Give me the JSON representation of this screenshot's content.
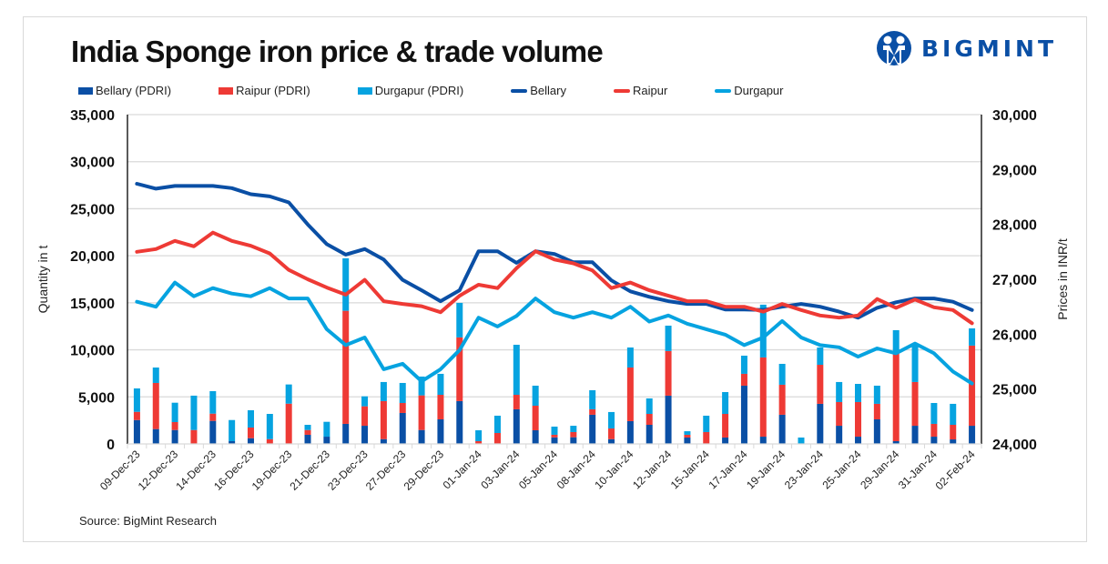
{
  "header": {
    "title": "India Sponge iron price & trade volume",
    "logo_text": "BIGMINT"
  },
  "colors": {
    "bellary": "#0a4fa5",
    "raipur": "#ee3a35",
    "durgapur": "#06a3e0"
  },
  "legend": [
    {
      "label": "Bellary (PDRI)",
      "kind": "bar",
      "color_key": "bellary"
    },
    {
      "label": "Raipur (PDRI)",
      "kind": "bar",
      "color_key": "raipur"
    },
    {
      "label": "Durgapur (PDRI)",
      "kind": "bar",
      "color_key": "durgapur"
    },
    {
      "label": "Bellary",
      "kind": "line",
      "color_key": "bellary"
    },
    {
      "label": "Raipur",
      "kind": "line",
      "color_key": "raipur"
    },
    {
      "label": "Durgapur",
      "kind": "line",
      "color_key": "durgapur"
    }
  ],
  "footer": {
    "source": "Source: BigMint Research"
  },
  "chart_data": {
    "type": "bar+line",
    "title": "India Sponge iron price & trade volume",
    "xlabel": "",
    "ylabel": "Quantity in t",
    "y2label": "Prices in INR/t",
    "ylim": [
      0,
      35000
    ],
    "yticks": [
      0,
      5000,
      10000,
      15000,
      20000,
      25000,
      30000,
      35000
    ],
    "ytick_labels": [
      "0",
      "5,000",
      "10,000",
      "15,000",
      "20,000",
      "25,000",
      "30,000",
      "35,000"
    ],
    "y2lim": [
      24000,
      30000
    ],
    "y2ticks": [
      24000,
      25000,
      26000,
      27000,
      28000,
      29000,
      30000
    ],
    "y2tick_labels": [
      "24,000",
      "25,000",
      "26,000",
      "27,000",
      "28,000",
      "29,000",
      "30,000"
    ],
    "grid": true,
    "legend_position": "top",
    "x_labels": [
      "09-Dec-23",
      null,
      "12-Dec-23",
      null,
      "14-Dec-23",
      null,
      "16-Dec-23",
      null,
      "19-Dec-23",
      null,
      "21-Dec-23",
      null,
      "23-Dec-23",
      null,
      "27-Dec-23",
      null,
      "29-Dec-23",
      null,
      "01-Jan-24",
      null,
      "03-Jan-24",
      null,
      "05-Jan-24",
      null,
      "08-Jan-24",
      null,
      "10-Jan-24",
      null,
      "12-Jan-24",
      null,
      "15-Jan-24",
      null,
      "17-Jan-24",
      null,
      "19-Jan-24",
      null,
      "23-Jan-24",
      null,
      "25-Jan-24",
      null,
      "29-Jan-24",
      null,
      "31-Jan-24",
      null,
      "02-Feb-24"
    ],
    "bar_series": [
      {
        "name": "Bellary (PDRI)",
        "color_key": "bellary",
        "stacked": true,
        "values": [
          2540,
          1580,
          1480,
          0,
          2450,
          290,
          610,
          0,
          0,
          970,
          770,
          2130,
          1930,
          510,
          3290,
          1480,
          2610,
          4550,
          0,
          0,
          3680,
          1450,
          700,
          710,
          3100,
          510,
          2420,
          2030,
          5130,
          680,
          0,
          680,
          6190,
          770,
          3100,
          0,
          4260,
          1930,
          770,
          2610,
          290,
          1930,
          770,
          480,
          1930
        ]
      },
      {
        "name": "Raipur (PDRI)",
        "color_key": "raipur",
        "stacked": true,
        "values": [
          870,
          4900,
          840,
          1480,
          770,
          0,
          1130,
          510,
          4280,
          510,
          0,
          12020,
          2070,
          4040,
          1060,
          3680,
          2610,
          6770,
          290,
          1160,
          1540,
          2610,
          270,
          550,
          580,
          1130,
          5700,
          1160,
          4740,
          290,
          1260,
          2510,
          1260,
          8420,
          3190,
          0,
          4150,
          2520,
          3680,
          1650,
          9480,
          4650,
          1360,
          1550,
          8520
        ]
      },
      {
        "name": "Durgapur (PDRI)",
        "color_key": "durgapur",
        "stacked": true,
        "values": [
          2490,
          1640,
          2060,
          3650,
          2390,
          2250,
          1840,
          2680,
          2040,
          550,
          1580,
          5580,
          1060,
          2030,
          2130,
          2000,
          2230,
          3670,
          1160,
          1840,
          5320,
          2130,
          870,
          670,
          2030,
          1750,
          2130,
          1650,
          2700,
          380,
          1740,
          2320,
          1930,
          5610,
          2220,
          680,
          1840,
          2130,
          1930,
          1930,
          2320,
          4060,
          2220,
          2230,
          1830
        ]
      }
    ],
    "line_series": [
      {
        "name": "Bellary",
        "color_key": "bellary",
        "axis": "right",
        "values": [
          28740,
          28650,
          28700,
          28700,
          28700,
          28660,
          28550,
          28510,
          28400,
          28000,
          27640,
          27450,
          27550,
          27360,
          26990,
          26800,
          26600,
          26800,
          27510,
          27510,
          27300,
          27510,
          27460,
          27310,
          27310,
          26980,
          26780,
          26680,
          26600,
          26550,
          26550,
          26450,
          26450,
          26440,
          26500,
          26550,
          26500,
          26410,
          26300,
          26480,
          26580,
          26650,
          26650,
          26590,
          26440
        ]
      },
      {
        "name": "Raipur",
        "color_key": "raipur",
        "axis": "right",
        "values": [
          27500,
          27550,
          27700,
          27600,
          27850,
          27700,
          27610,
          27470,
          27170,
          27000,
          26850,
          26720,
          26990,
          26600,
          26550,
          26510,
          26400,
          26700,
          26900,
          26840,
          27200,
          27510,
          27360,
          27290,
          27160,
          26840,
          26940,
          26800,
          26700,
          26600,
          26600,
          26500,
          26500,
          26410,
          26550,
          26440,
          26340,
          26300,
          26340,
          26640,
          26480,
          26630,
          26490,
          26440,
          26200
        ]
      },
      {
        "name": "Durgapur",
        "color_key": "durgapur",
        "axis": "right",
        "values": [
          26590,
          26500,
          26940,
          26690,
          26840,
          26740,
          26690,
          26840,
          26650,
          26650,
          26090,
          25800,
          25940,
          25360,
          25460,
          25140,
          25360,
          25710,
          26300,
          26140,
          26330,
          26650,
          26400,
          26300,
          26400,
          26300,
          26500,
          26230,
          26340,
          26190,
          26090,
          25990,
          25800,
          25940,
          26240,
          25940,
          25800,
          25760,
          25590,
          25740,
          25650,
          25830,
          25650,
          25320,
          25100
        ]
      }
    ]
  }
}
